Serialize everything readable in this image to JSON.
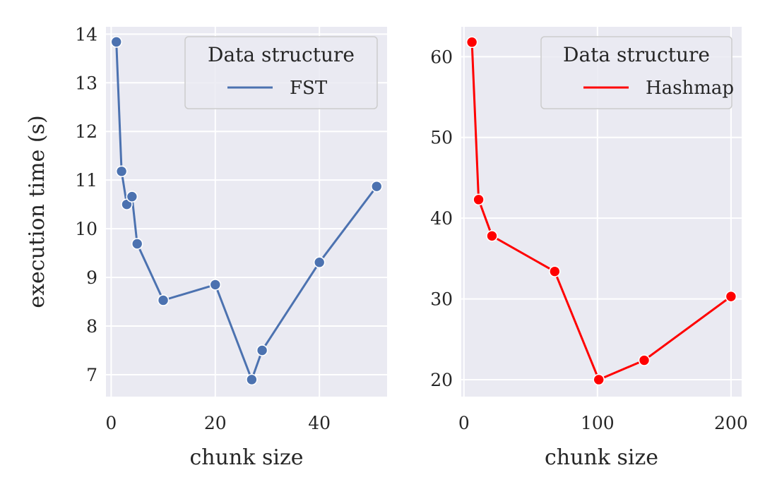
{
  "chart_data": [
    {
      "type": "line",
      "xlabel": "chunk size",
      "ylabel": "execution time (s)",
      "xlim": [
        -1,
        53
      ],
      "ylim": [
        6.55,
        14.15
      ],
      "xticks": [
        0,
        20,
        40
      ],
      "yticks": [
        7,
        8,
        9,
        10,
        11,
        12,
        13,
        14
      ],
      "grid": true,
      "legend": {
        "title": "Data structure",
        "position": "upper right"
      },
      "series": [
        {
          "name": "FST",
          "color": "#4c72b0",
          "marker": "circle",
          "x": [
            1,
            2,
            3,
            4,
            5,
            10,
            20,
            27,
            29,
            40,
            51
          ],
          "y": [
            13.84,
            11.18,
            10.5,
            10.66,
            9.69,
            8.53,
            8.85,
            6.9,
            7.5,
            9.31,
            10.87
          ]
        }
      ]
    },
    {
      "type": "line",
      "xlabel": "chunk size",
      "ylabel": "",
      "xlim": [
        -2,
        208
      ],
      "ylim": [
        17.9,
        63.7
      ],
      "xticks": [
        0,
        100,
        200
      ],
      "yticks": [
        20,
        30,
        40,
        50,
        60
      ],
      "grid": true,
      "legend": {
        "title": "Data structure",
        "position": "upper right"
      },
      "series": [
        {
          "name": "Hashmap",
          "color": "#ff0000",
          "marker": "circle",
          "x": [
            6,
            11,
            21,
            68,
            101,
            135,
            200
          ],
          "y": [
            61.8,
            42.3,
            37.8,
            33.4,
            20.0,
            22.4,
            30.3
          ]
        }
      ]
    }
  ]
}
